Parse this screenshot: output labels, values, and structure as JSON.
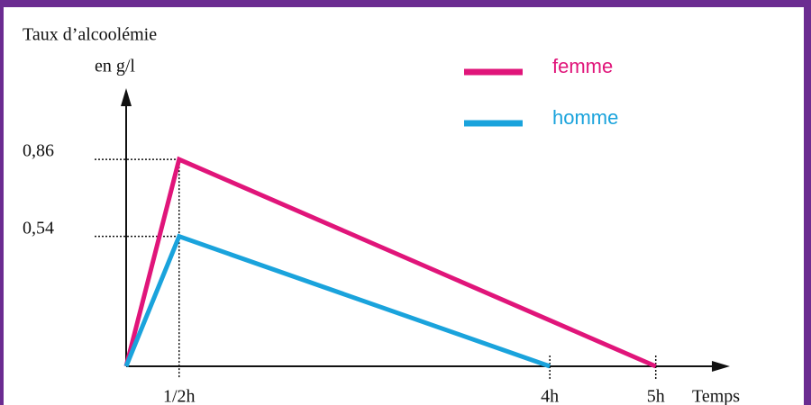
{
  "chart_data": {
    "type": "line",
    "ylabel": [
      "Taux d’alcoolémie",
      "en g/l"
    ],
    "xlabel": "Temps",
    "series": [
      {
        "name": "femme",
        "color": "#e0157a",
        "x": [
          0,
          0.5,
          5
        ],
        "values": [
          0,
          0.86,
          0
        ]
      },
      {
        "name": "homme",
        "color": "#1aa3dc",
        "x": [
          0,
          0.5,
          4
        ],
        "values": [
          0,
          0.54,
          0
        ]
      }
    ],
    "xlim": [
      0,
      5.7
    ],
    "ylim": [
      0,
      1.1
    ],
    "xticks": [
      {
        "value": 0.5,
        "label": "1/2h"
      },
      {
        "value": 4,
        "label": "4h"
      },
      {
        "value": 5,
        "label": "5h"
      }
    ],
    "yticks": [
      {
        "value": 0.54,
        "label": "0,54"
      },
      {
        "value": 0.86,
        "label": "0,86"
      }
    ],
    "legend": "top-right"
  }
}
